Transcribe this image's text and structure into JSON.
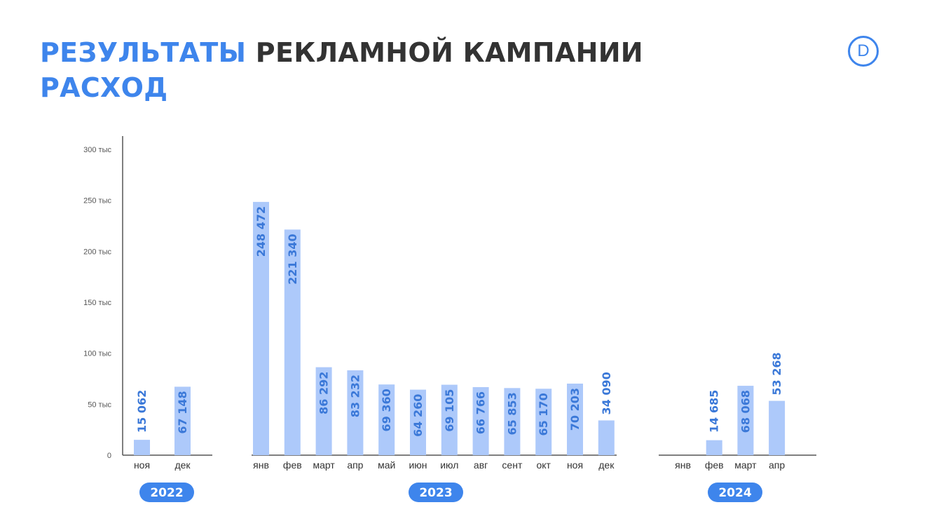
{
  "header": {
    "title_accent": "РЕЗУЛЬТАТЫ",
    "title_rest": "РЕКЛАМНОЙ КАМПАНИИ",
    "subtitle": "РАСХОД"
  },
  "logo": {
    "letter": "D",
    "icon": "logo-d-circle-icon"
  },
  "colors": {
    "accent": "#3e85ec",
    "bar": "#adc9fa",
    "bar_label": "#3a78d8",
    "title_dark": "#333333",
    "badge": "#3e85ec"
  },
  "chart_data": {
    "type": "bar",
    "title": "",
    "xlabel": "",
    "ylabel": "",
    "ylim": [
      0,
      300000
    ],
    "yticks": [
      {
        "value": 0,
        "label": "0"
      },
      {
        "value": 50000,
        "label": "50 тыс"
      },
      {
        "value": 100000,
        "label": "100 тыс"
      },
      {
        "value": 150000,
        "label": "150 тыс"
      },
      {
        "value": 200000,
        "label": "200 тыс"
      },
      {
        "value": 250000,
        "label": "250 тыс"
      },
      {
        "value": 300000,
        "label": "300 тыс"
      }
    ],
    "grid": false,
    "groups": [
      {
        "year": "2022",
        "categories": [
          "ноя",
          "дек"
        ],
        "values": [
          15062,
          67148
        ],
        "labels": [
          "15 062",
          "67 148"
        ]
      },
      {
        "year": "2023",
        "categories": [
          "янв",
          "фев",
          "март",
          "апр",
          "май",
          "июн",
          "июл",
          "авг",
          "сент",
          "окт",
          "ноя",
          "дек"
        ],
        "values": [
          248472,
          221340,
          86292,
          83232,
          69360,
          64260,
          69105,
          66766,
          65853,
          65170,
          70203,
          34090
        ],
        "labels": [
          "248 472",
          "221 340",
          "86 292",
          "83 232",
          "69 360",
          "64 260",
          "69 105",
          "66 766",
          "65 853",
          "65 170",
          "70 203",
          "34 090"
        ]
      },
      {
        "year": "2024",
        "categories": [
          "янв",
          "фев",
          "март",
          "апр"
        ],
        "values": [
          null,
          14685,
          68068,
          53268
        ],
        "labels": [
          "",
          "14 685",
          "68 068",
          "53 268"
        ]
      }
    ]
  }
}
